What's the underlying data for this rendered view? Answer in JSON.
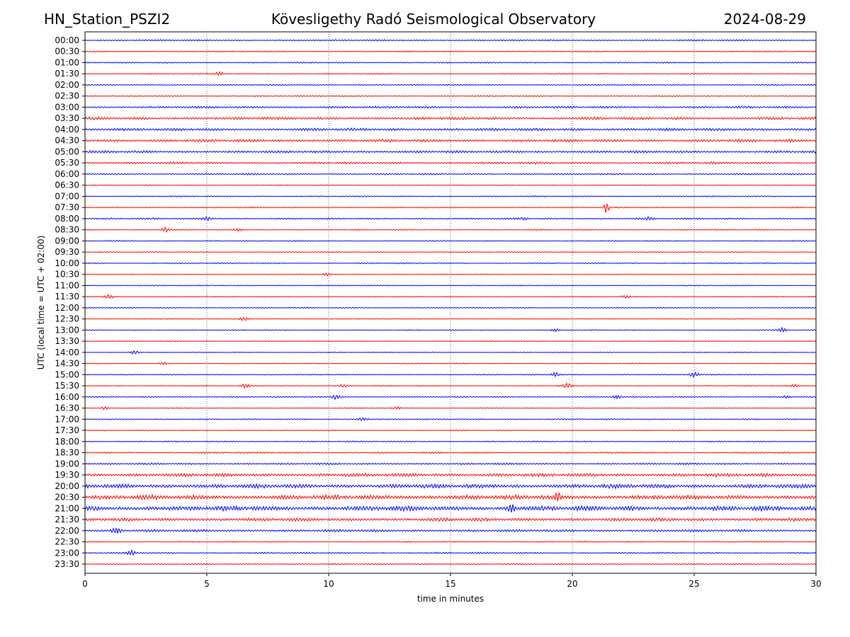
{
  "header": {
    "station": "HN_Station_PSZI2",
    "observatory": "Kövesligethy Radó Seismological Observatory",
    "date": "2024-08-29"
  },
  "chart_data": {
    "type": "line",
    "title": "Kövesligethy Radó Seismological Observatory",
    "xlabel": "time in minutes",
    "ylabel": "UTC (local time = UTC + 02:00)",
    "xlim": [
      0,
      30
    ],
    "xticks": [
      0,
      5,
      10,
      15,
      20,
      25,
      30
    ],
    "grid": "vertical dotted at x ticks",
    "colors": [
      "#0000ff",
      "#ff0000"
    ],
    "rows": [
      "00:00",
      "00:30",
      "01:00",
      "01:30",
      "02:00",
      "02:30",
      "03:00",
      "03:30",
      "04:00",
      "04:30",
      "05:00",
      "05:30",
      "06:00",
      "06:30",
      "07:00",
      "07:30",
      "08:00",
      "08:30",
      "09:00",
      "09:30",
      "10:00",
      "10:30",
      "11:00",
      "11:30",
      "12:00",
      "12:30",
      "13:00",
      "13:30",
      "14:00",
      "14:30",
      "15:00",
      "15:30",
      "16:00",
      "16:30",
      "17:00",
      "17:30",
      "18:00",
      "18:30",
      "19:00",
      "19:30",
      "20:00",
      "20:30",
      "21:00",
      "21:30",
      "22:00",
      "22:30",
      "23:00",
      "23:30"
    ],
    "noise_level": [
      1,
      0.8,
      0.8,
      0.8,
      0.8,
      0.8,
      1.4,
      1.8,
      1.8,
      1.8,
      1.6,
      1.4,
      1,
      0.6,
      0.8,
      0.8,
      1,
      0.8,
      0.8,
      0.6,
      0.8,
      0.6,
      0.7,
      0.7,
      0.7,
      0.6,
      0.7,
      0.6,
      0.6,
      0.6,
      0.7,
      0.7,
      0.8,
      0.6,
      0.8,
      0.7,
      0.8,
      1,
      1.2,
      2.2,
      2.8,
      3,
      3.2,
      2.2,
      1.6,
      0.8,
      1,
      0.8
    ],
    "events": [
      {
        "row": "01:30",
        "minute": 5.5,
        "amplitude": 3
      },
      {
        "row": "07:30",
        "minute": 21.4,
        "amplitude": 8
      },
      {
        "row": "08:00",
        "minute": 5.0,
        "amplitude": 3
      },
      {
        "row": "08:00",
        "minute": 18.0,
        "amplitude": 2
      },
      {
        "row": "08:00",
        "minute": 23.2,
        "amplitude": 2
      },
      {
        "row": "08:30",
        "minute": 3.3,
        "amplitude": 3
      },
      {
        "row": "08:30",
        "minute": 6.3,
        "amplitude": 2
      },
      {
        "row": "10:30",
        "minute": 9.9,
        "amplitude": 2
      },
      {
        "row": "11:30",
        "minute": 1.0,
        "amplitude": 3
      },
      {
        "row": "11:30",
        "minute": 22.2,
        "amplitude": 2
      },
      {
        "row": "12:30",
        "minute": 6.5,
        "amplitude": 3
      },
      {
        "row": "13:00",
        "minute": 19.3,
        "amplitude": 2
      },
      {
        "row": "13:00",
        "minute": 28.6,
        "amplitude": 3
      },
      {
        "row": "14:00",
        "minute": 2.0,
        "amplitude": 3
      },
      {
        "row": "14:30",
        "minute": 3.2,
        "amplitude": 2
      },
      {
        "row": "15:00",
        "minute": 19.3,
        "amplitude": 3
      },
      {
        "row": "15:00",
        "minute": 25.0,
        "amplitude": 4
      },
      {
        "row": "15:30",
        "minute": 6.6,
        "amplitude": 3
      },
      {
        "row": "15:30",
        "minute": 10.6,
        "amplitude": 2
      },
      {
        "row": "15:30",
        "minute": 19.8,
        "amplitude": 3
      },
      {
        "row": "15:30",
        "minute": 29.1,
        "amplitude": 2
      },
      {
        "row": "16:00",
        "minute": 10.3,
        "amplitude": 3
      },
      {
        "row": "16:00",
        "minute": 21.8,
        "amplitude": 3
      },
      {
        "row": "16:00",
        "minute": 28.8,
        "amplitude": 2
      },
      {
        "row": "16:30",
        "minute": 0.8,
        "amplitude": 2
      },
      {
        "row": "16:30",
        "minute": 12.8,
        "amplitude": 2
      },
      {
        "row": "17:00",
        "minute": 11.4,
        "amplitude": 2
      },
      {
        "row": "20:30",
        "minute": 19.4,
        "amplitude": 8
      },
      {
        "row": "21:00",
        "minute": 17.5,
        "amplitude": 5
      },
      {
        "row": "22:00",
        "minute": 1.3,
        "amplitude": 4
      },
      {
        "row": "23:00",
        "minute": 1.9,
        "amplitude": 3
      }
    ]
  }
}
